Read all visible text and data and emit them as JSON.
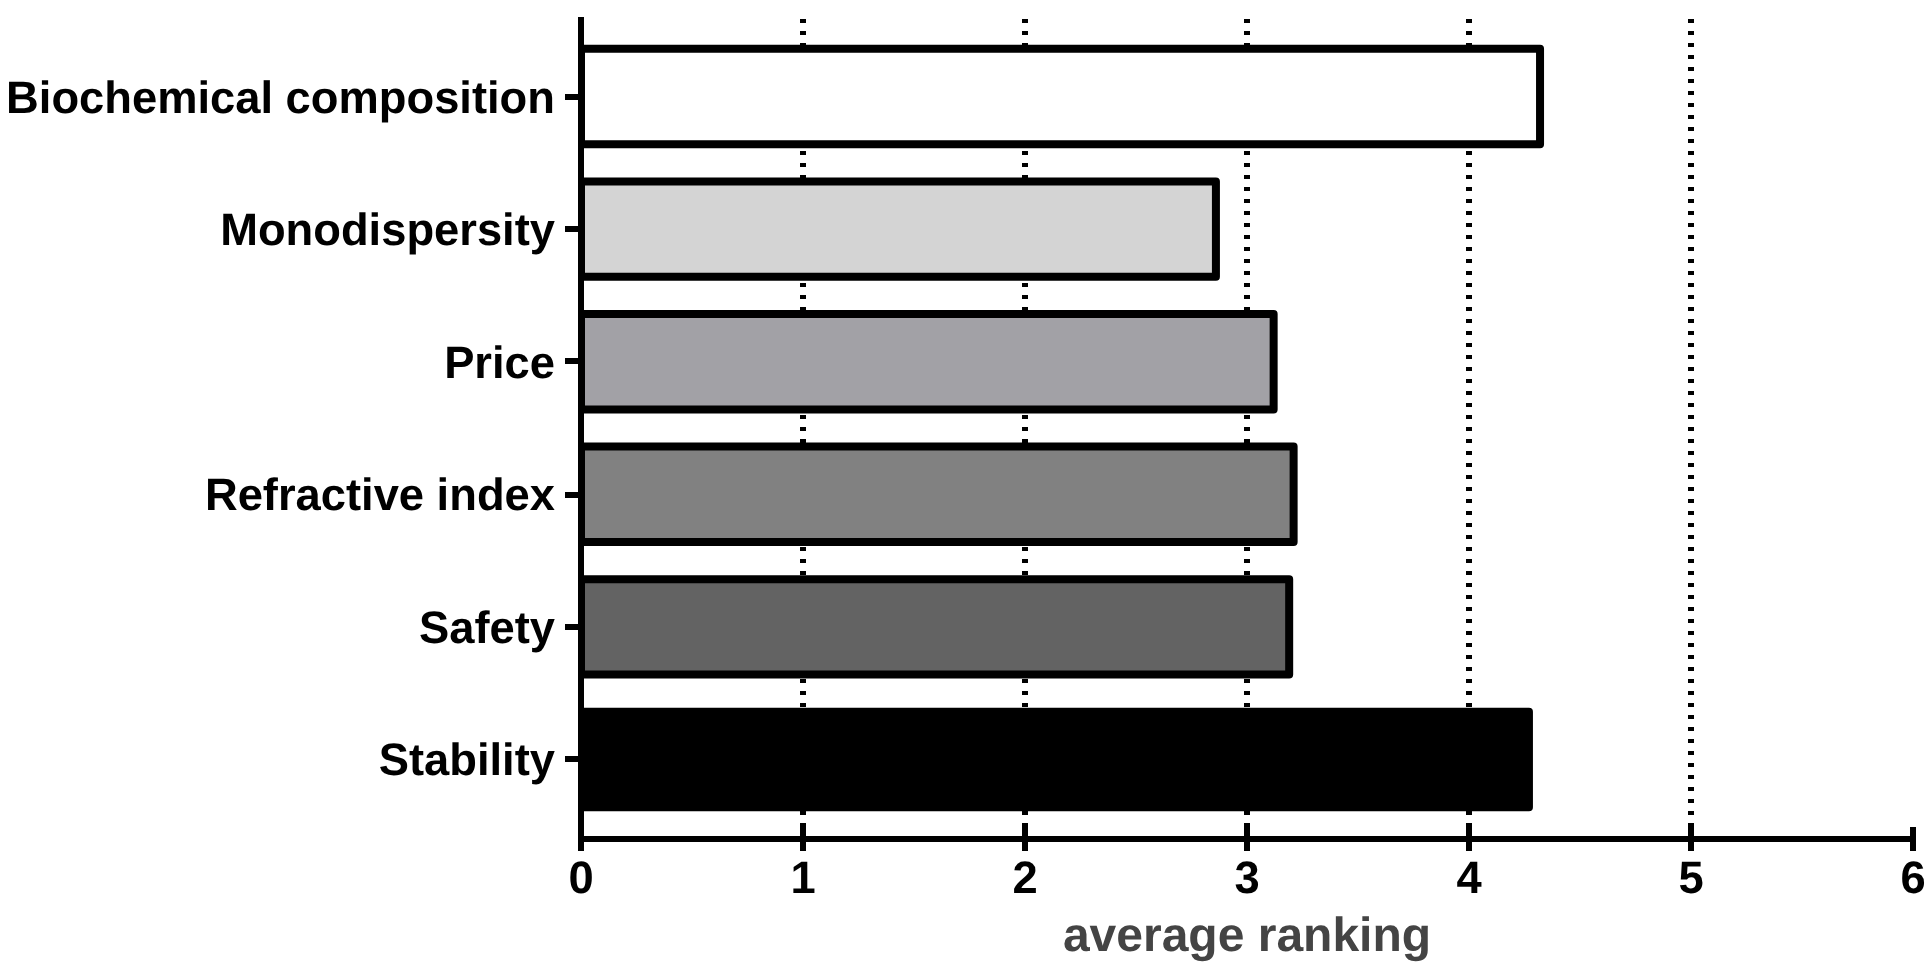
{
  "chart_data": {
    "type": "bar",
    "orientation": "horizontal",
    "xlabel": "average ranking",
    "categories": [
      "Biochemical composition",
      "Monodispersity",
      "Price",
      "Refractive index",
      "Safety",
      "Stability"
    ],
    "values": [
      4.32,
      2.86,
      3.12,
      3.21,
      3.19,
      4.27
    ],
    "colors": [
      "#ffffff",
      "#d4d4d4",
      "#a2a1a6",
      "#818181",
      "#636363",
      "#000000"
    ],
    "xlim": [
      0,
      6
    ],
    "xticks": [
      0,
      1,
      2,
      3,
      4,
      5,
      6
    ],
    "grid": "x",
    "line_style": "dotted"
  }
}
